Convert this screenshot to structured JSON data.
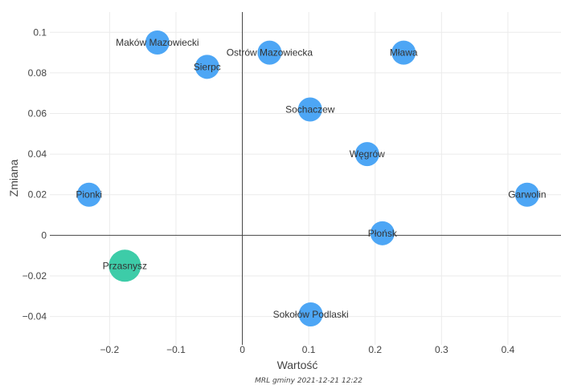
{
  "chart_data": {
    "type": "scatter",
    "xlabel": "Wartość",
    "ylabel": "Zmiana",
    "footer": "MRL gminy 2021-12-21 12:22",
    "xlim": [
      -0.29,
      0.48
    ],
    "ylim": [
      -0.054,
      0.11
    ],
    "grid": true,
    "x_ticks": [
      {
        "value": -0.2,
        "label": "−0.2"
      },
      {
        "value": -0.1,
        "label": "−0.1"
      },
      {
        "value": 0,
        "label": "0"
      },
      {
        "value": 0.1,
        "label": "0.1"
      },
      {
        "value": 0.2,
        "label": "0.2"
      },
      {
        "value": 0.3,
        "label": "0.3"
      },
      {
        "value": 0.4,
        "label": "0.4"
      }
    ],
    "y_ticks": [
      {
        "value": -0.04,
        "label": "−0.04"
      },
      {
        "value": -0.02,
        "label": "−0.02"
      },
      {
        "value": 0,
        "label": "0"
      },
      {
        "value": 0.02,
        "label": "0.02"
      },
      {
        "value": 0.04,
        "label": "0.04"
      },
      {
        "value": 0.06,
        "label": "0.06"
      },
      {
        "value": 0.08,
        "label": "0.08"
      },
      {
        "value": 0.1,
        "label": "0.1"
      }
    ],
    "colors": {
      "default": "#4da6f5",
      "highlight": "#3dcca8"
    },
    "points": [
      {
        "label": "Maków Mazowiecki",
        "x": -0.128,
        "y": 0.095,
        "highlight": false
      },
      {
        "label": "Sierpc",
        "x": -0.053,
        "y": 0.083,
        "highlight": false
      },
      {
        "label": "Ostrów Mazowiecka",
        "x": 0.041,
        "y": 0.09,
        "highlight": false
      },
      {
        "label": "Mława",
        "x": 0.243,
        "y": 0.09,
        "highlight": false
      },
      {
        "label": "Sochaczew",
        "x": 0.102,
        "y": 0.062,
        "highlight": false
      },
      {
        "label": "Węgrów",
        "x": 0.188,
        "y": 0.04,
        "highlight": false
      },
      {
        "label": "Pionki",
        "x": -0.231,
        "y": 0.02,
        "highlight": false
      },
      {
        "label": "Garwolin",
        "x": 0.429,
        "y": 0.02,
        "highlight": false
      },
      {
        "label": "Płońsk",
        "x": 0.211,
        "y": 0.001,
        "highlight": false
      },
      {
        "label": "Przasnysz",
        "x": -0.177,
        "y": -0.015,
        "highlight": true
      },
      {
        "label": "Sokołów Podlaski",
        "x": 0.103,
        "y": -0.039,
        "highlight": false
      }
    ]
  }
}
